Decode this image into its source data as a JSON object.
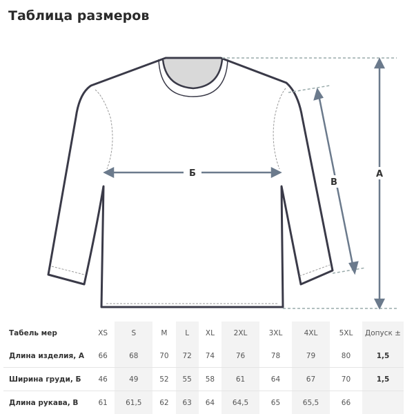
{
  "title": "Таблица размеров",
  "diagram": {
    "labels": {
      "chest": "Б",
      "sleeve": "В",
      "length": "А"
    }
  },
  "table": {
    "header": [
      "Табель мер",
      "XS",
      "S",
      "M",
      "L",
      "XL",
      "2XL",
      "3XL",
      "4XL",
      "5XL",
      "Допуск ±"
    ],
    "rows": [
      [
        "Длина изделия, А",
        "66",
        "68",
        "70",
        "72",
        "74",
        "76",
        "78",
        "79",
        "80",
        "1,5"
      ],
      [
        "Ширина груди, Б",
        "46",
        "49",
        "52",
        "55",
        "58",
        "61",
        "64",
        "67",
        "70",
        "1,5"
      ],
      [
        "Длина рукава, В",
        "61",
        "61,5",
        "62",
        "63",
        "64",
        "64,5",
        "65",
        "65,5",
        "66",
        ""
      ]
    ]
  }
}
